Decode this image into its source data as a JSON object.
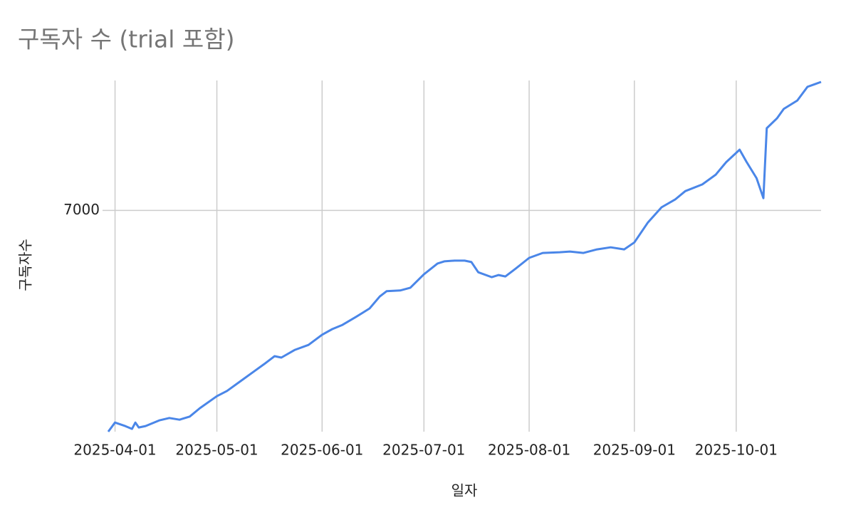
{
  "chart_data": {
    "type": "line",
    "title": "구독자 수 (trial 포함)",
    "x_label": "일자",
    "y_label": "구독자수",
    "x": [
      "2025-03-30",
      "2025-04-01",
      "2025-04-04",
      "2025-04-06",
      "2025-04-07",
      "2025-04-08",
      "2025-04-10",
      "2025-04-14",
      "2025-04-17",
      "2025-04-20",
      "2025-04-23",
      "2025-04-26",
      "2025-05-01",
      "2025-05-04",
      "2025-05-08",
      "2025-05-12",
      "2025-05-15",
      "2025-05-18",
      "2025-05-20",
      "2025-05-24",
      "2025-05-28",
      "2025-06-01",
      "2025-06-04",
      "2025-06-07",
      "2025-06-11",
      "2025-06-15",
      "2025-06-18",
      "2025-06-20",
      "2025-06-24",
      "2025-06-27",
      "2025-07-01",
      "2025-07-05",
      "2025-07-07",
      "2025-07-10",
      "2025-07-13",
      "2025-07-15",
      "2025-07-17",
      "2025-07-21",
      "2025-07-23",
      "2025-07-25",
      "2025-07-28",
      "2025-08-01",
      "2025-08-05",
      "2025-08-10",
      "2025-08-13",
      "2025-08-17",
      "2025-08-21",
      "2025-08-25",
      "2025-08-29",
      "2025-09-01",
      "2025-09-05",
      "2025-09-09",
      "2025-09-13",
      "2025-09-16",
      "2025-09-21",
      "2025-09-25",
      "2025-09-28",
      "2025-10-02",
      "2025-10-04",
      "2025-10-07",
      "2025-10-09",
      "2025-10-10",
      "2025-10-13",
      "2025-10-15",
      "2025-10-19",
      "2025-10-22",
      "2025-10-26"
    ],
    "series": [
      {
        "name": "구독자수",
        "color": "#4a86e8",
        "values": [
          6370,
          6396,
          6386,
          6378,
          6396,
          6382,
          6386,
          6402,
          6409,
          6404,
          6413,
          6437,
          6471,
          6486,
          6514,
          6542,
          6563,
          6585,
          6581,
          6603,
          6617,
          6646,
          6662,
          6674,
          6697,
          6721,
          6755,
          6770,
          6772,
          6780,
          6818,
          6849,
          6855,
          6857,
          6857,
          6853,
          6824,
          6810,
          6816,
          6812,
          6834,
          6865,
          6879,
          6881,
          6883,
          6879,
          6889,
          6895,
          6889,
          6909,
          6966,
          7009,
          7031,
          7055,
          7074,
          7102,
          7137,
          7173,
          7139,
          7092,
          7035,
          7234,
          7262,
          7289,
          7313,
          7352,
          7366
        ]
      }
    ],
    "xlim": [
      "2025-03-30",
      "2025-10-26"
    ],
    "xticks": [
      "2025-04-01",
      "2025-05-01",
      "2025-06-01",
      "2025-07-01",
      "2025-08-01",
      "2025-09-01",
      "2025-10-01"
    ],
    "ylim": [
      6370,
      7370
    ],
    "yticks": [
      7000
    ],
    "grid": true
  }
}
